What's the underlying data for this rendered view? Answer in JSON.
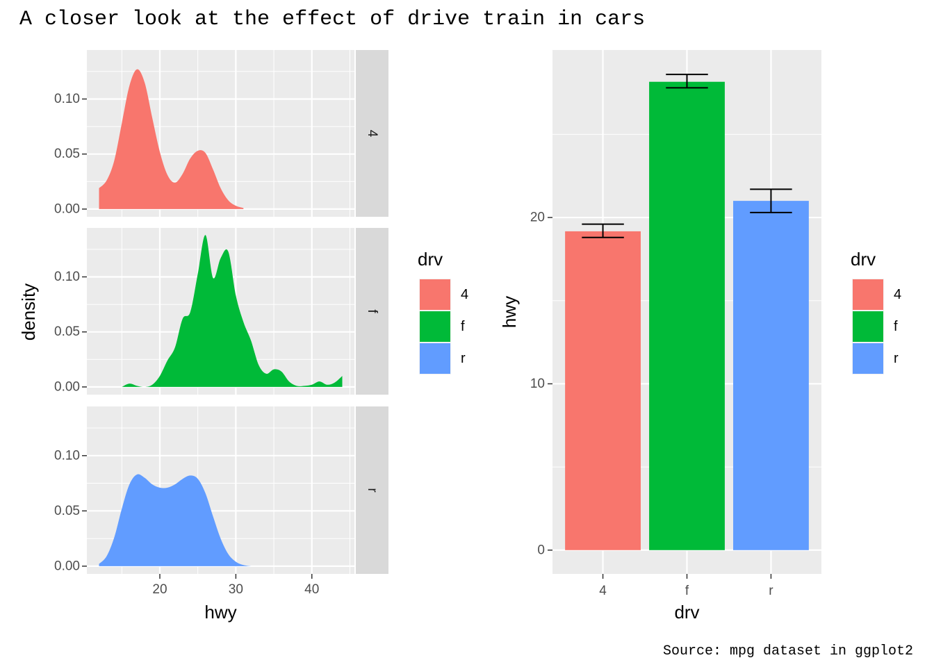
{
  "title": "A closer look at the effect of drive train in cars",
  "caption": "Source: mpg dataset in ggplot2",
  "colors": {
    "panel_bg": "#EBEBEB",
    "grid": "#FFFFFF",
    "strip_bg": "#D9D9D9",
    "4": "#F8766D",
    "f": "#00BA38",
    "r": "#619CFF",
    "tick_text": "#4D4D4D"
  },
  "legend": {
    "title": "drv",
    "items": [
      {
        "label": "4",
        "color": "#F8766D"
      },
      {
        "label": "f",
        "color": "#00BA38"
      },
      {
        "label": "r",
        "color": "#619CFF"
      }
    ]
  },
  "chart_data": [
    {
      "type": "area",
      "subtype": "faceted density",
      "xlabel": "hwy",
      "ylabel": "density",
      "xlim": [
        10.4,
        45.6
      ],
      "ylim": [
        -0.007,
        0.1445
      ],
      "xticks": [
        20,
        30,
        40
      ],
      "xtick_labels": [
        "20",
        "30",
        "40"
      ],
      "yticks": [
        0.0,
        0.05,
        0.1
      ],
      "ytick_labels": [
        "0.00",
        "0.05",
        "0.10"
      ],
      "facets": [
        {
          "strip": "4",
          "color": "#F8766D",
          "x": [
            12,
            13,
            14,
            15,
            16,
            17,
            18,
            19,
            20,
            21,
            22,
            23,
            24,
            25,
            26,
            27,
            28,
            29,
            30,
            31
          ],
          "y": [
            0.019,
            0.026,
            0.044,
            0.078,
            0.112,
            0.127,
            0.115,
            0.083,
            0.052,
            0.031,
            0.024,
            0.032,
            0.046,
            0.053,
            0.051,
            0.036,
            0.019,
            0.008,
            0.003,
            0.001
          ]
        },
        {
          "strip": "f",
          "color": "#00BA38",
          "x": [
            15,
            16,
            17,
            18,
            19,
            20,
            21,
            22,
            23,
            24,
            25,
            26,
            27,
            28,
            29,
            30,
            31,
            32,
            33,
            34,
            35,
            36,
            37,
            38,
            39,
            40,
            41,
            42,
            43,
            44
          ],
          "y": [
            0.0,
            0.003,
            0.001,
            0.0,
            0.002,
            0.01,
            0.024,
            0.036,
            0.062,
            0.068,
            0.103,
            0.138,
            0.099,
            0.117,
            0.123,
            0.083,
            0.059,
            0.042,
            0.02,
            0.012,
            0.016,
            0.014,
            0.005,
            0.001,
            0.001,
            0.002,
            0.005,
            0.002,
            0.004,
            0.01
          ]
        },
        {
          "strip": "r",
          "color": "#619CFF",
          "x": [
            12,
            13,
            14,
            15,
            16,
            17,
            18,
            19,
            20,
            21,
            22,
            23,
            24,
            25,
            26,
            27,
            28,
            29,
            30,
            31,
            32
          ],
          "y": [
            0.002,
            0.009,
            0.026,
            0.052,
            0.074,
            0.083,
            0.08,
            0.074,
            0.071,
            0.071,
            0.074,
            0.079,
            0.082,
            0.079,
            0.066,
            0.045,
            0.025,
            0.011,
            0.004,
            0.001,
            0.0
          ]
        }
      ]
    },
    {
      "type": "bar",
      "subtype": "bar with error bars",
      "categories": [
        "4",
        "f",
        "r"
      ],
      "values": [
        19.17,
        28.16,
        21.0
      ],
      "error_low": [
        18.8,
        27.8,
        20.3
      ],
      "error_high": [
        19.6,
        28.6,
        21.7
      ],
      "colors": [
        "#F8766D",
        "#00BA38",
        "#619CFF"
      ],
      "xlabel": "drv",
      "ylabel": "hwy",
      "ylim": [
        -1.43,
        30.07
      ],
      "yticks": [
        0,
        10,
        20
      ],
      "ytick_labels": [
        "0",
        "10",
        "20"
      ]
    }
  ]
}
